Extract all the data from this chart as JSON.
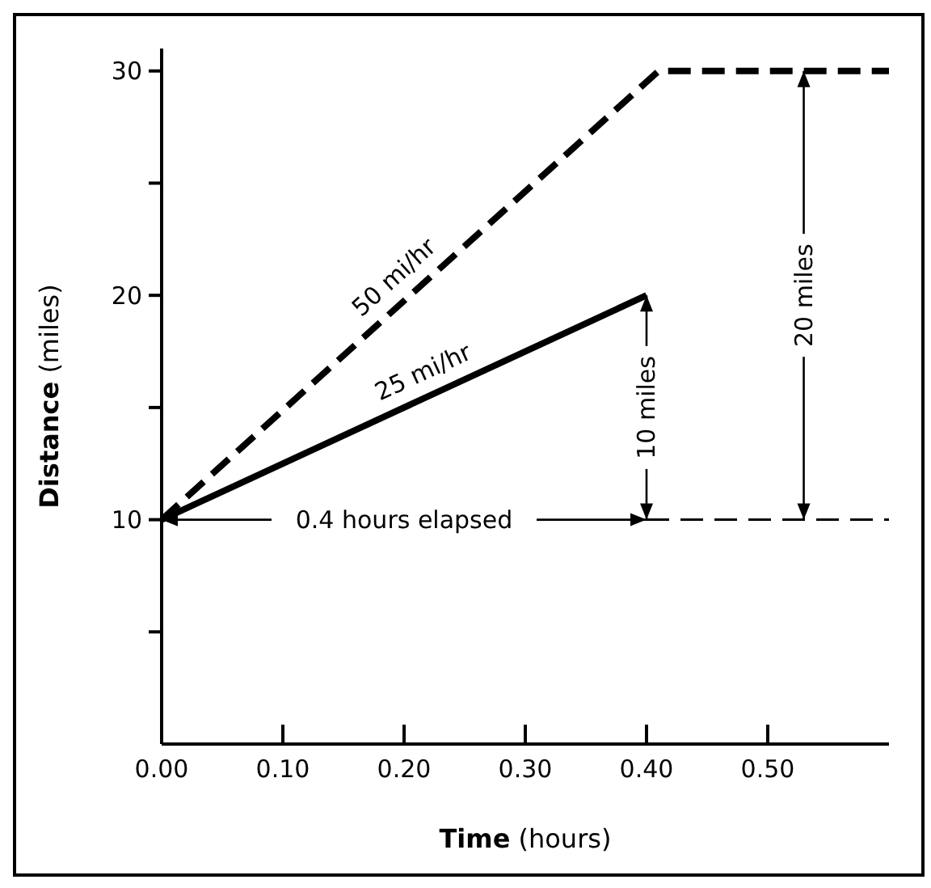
{
  "chart_data": {
    "type": "line",
    "xlabel": "Time (hours)",
    "ylabel": "Distance (miles)",
    "xlim": [
      0,
      0.6
    ],
    "ylim": [
      0,
      31
    ],
    "xticks": [
      {
        "value": 0,
        "label": "0.00"
      },
      {
        "value": 0.1,
        "label": "0.10"
      },
      {
        "value": 0.2,
        "label": "0.20"
      },
      {
        "value": 0.3,
        "label": "0.30"
      },
      {
        "value": 0.4,
        "label": "0.40"
      },
      {
        "value": 0.5,
        "label": "0.50"
      }
    ],
    "yticks": [
      {
        "value": 5,
        "label": null
      },
      10,
      {
        "value": 15,
        "label": null
      },
      20,
      {
        "value": 25,
        "label": null
      },
      30
    ],
    "grid": false,
    "marker": "none",
    "series": [
      {
        "color": "#000000",
        "line_style": "dashed",
        "x": [
          0,
          0.41,
          0.6
        ],
        "values": [
          10,
          30,
          30
        ]
      },
      {
        "color": "#000000",
        "line_style": "solid",
        "x": [
          0,
          0.4
        ],
        "values": [
          10,
          20
        ]
      },
      {
        "color": "#000000",
        "line_style": "dashed",
        "x": [
          0.4,
          0.6
        ],
        "values": [
          10,
          10
        ]
      }
    ],
    "annotations": [
      "50 mi/hr",
      "25 mi/hr",
      "0.4 hours elapsed",
      "10 miles",
      "20 miles"
    ]
  }
}
